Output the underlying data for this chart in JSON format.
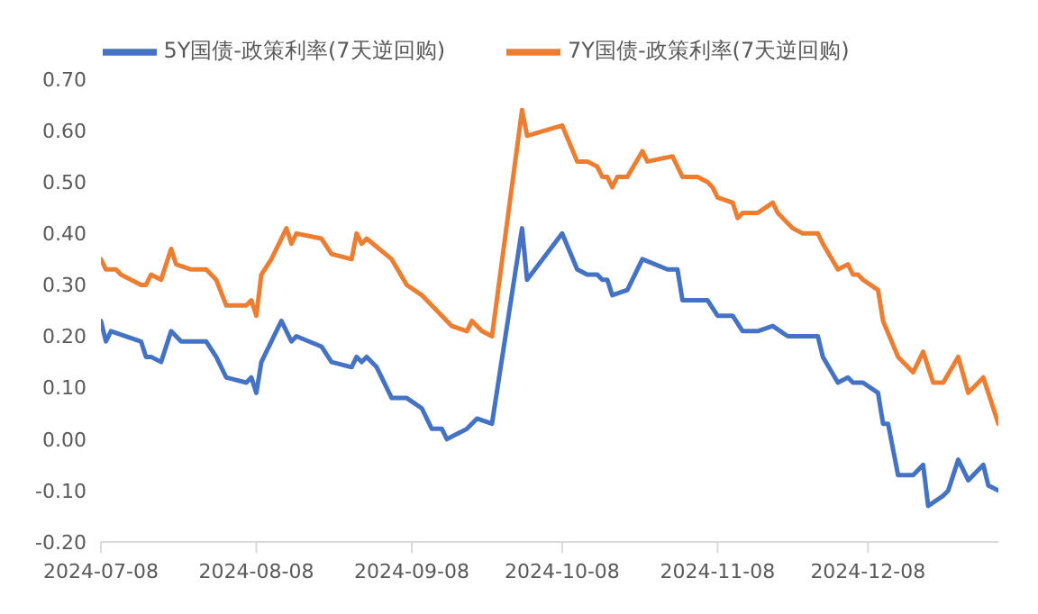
{
  "chart_data": {
    "type": "line",
    "legend": "top",
    "grid": false,
    "marker": "none",
    "line_style": "solid",
    "xlim": [
      "2024-07-08",
      "2025-01-03"
    ],
    "xticks": [
      "2024-07-08",
      "2024-08-08",
      "2024-09-08",
      "2024-10-08",
      "2024-11-08",
      "2024-12-08"
    ],
    "ylim": [
      -0.2,
      0.7
    ],
    "yticks": [
      {
        "value": -0.2,
        "label": "-0.20"
      },
      {
        "value": -0.1,
        "label": "-0.10"
      },
      {
        "value": 0,
        "label": "0.00"
      },
      {
        "value": 0.1,
        "label": "0.10"
      },
      {
        "value": 0.2,
        "label": "0.20"
      },
      {
        "value": 0.3,
        "label": "0.30"
      },
      {
        "value": 0.4,
        "label": "0.40"
      },
      {
        "value": 0.5,
        "label": "0.50"
      },
      {
        "value": 0.6,
        "label": "0.60"
      },
      {
        "value": 0.7,
        "label": "0.70"
      }
    ],
    "series": [
      {
        "name": "5Y国债-政策利率(7天逆回购)",
        "color": "#4472c4",
        "x": [
          "2024-07-08",
          "2024-07-09",
          "2024-07-10",
          "2024-07-13",
          "2024-07-16",
          "2024-07-17",
          "2024-07-18",
          "2024-07-20",
          "2024-07-22",
          "2024-07-24",
          "2024-07-27",
          "2024-07-29",
          "2024-07-31",
          "2024-08-02",
          "2024-08-06",
          "2024-08-07",
          "2024-08-08",
          "2024-08-09",
          "2024-08-13",
          "2024-08-15",
          "2024-08-16",
          "2024-08-21",
          "2024-08-23",
          "2024-08-27",
          "2024-08-28",
          "2024-08-29",
          "2024-08-30",
          "2024-09-01",
          "2024-09-04",
          "2024-09-07",
          "2024-09-10",
          "2024-09-12",
          "2024-09-14",
          "2024-09-15",
          "2024-09-19",
          "2024-09-21",
          "2024-09-24",
          "2024-09-30",
          "2024-10-01",
          "2024-10-08",
          "2024-10-11",
          "2024-10-13",
          "2024-10-15",
          "2024-10-16",
          "2024-10-17",
          "2024-10-18",
          "2024-10-21",
          "2024-10-24",
          "2024-10-29",
          "2024-10-31",
          "2024-11-01",
          "2024-11-04",
          "2024-11-06",
          "2024-11-08",
          "2024-11-11",
          "2024-11-13",
          "2024-11-16",
          "2024-11-19",
          "2024-11-22",
          "2024-11-26",
          "2024-11-28",
          "2024-11-29",
          "2024-12-02",
          "2024-12-04",
          "2024-12-05",
          "2024-12-07",
          "2024-12-10",
          "2024-12-11",
          "2024-12-12",
          "2024-12-14",
          "2024-12-17",
          "2024-12-19",
          "2024-12-20",
          "2024-12-23",
          "2024-12-24",
          "2024-12-26",
          "2024-12-28",
          "2024-12-31",
          "2025-01-01",
          "2025-01-03"
        ],
        "values": [
          0.23,
          0.19,
          0.21,
          0.2,
          0.19,
          0.16,
          0.16,
          0.15,
          0.21,
          0.19,
          0.19,
          0.19,
          0.16,
          0.12,
          0.11,
          0.12,
          0.09,
          0.15,
          0.23,
          0.19,
          0.2,
          0.18,
          0.15,
          0.14,
          0.16,
          0.15,
          0.16,
          0.14,
          0.08,
          0.08,
          0.06,
          0.02,
          0.02,
          0.0,
          0.02,
          0.04,
          0.03,
          0.41,
          0.31,
          0.4,
          0.33,
          0.32,
          0.32,
          0.31,
          0.31,
          0.28,
          0.29,
          0.35,
          0.33,
          0.33,
          0.27,
          0.27,
          0.27,
          0.24,
          0.24,
          0.21,
          0.21,
          0.22,
          0.2,
          0.2,
          0.2,
          0.16,
          0.11,
          0.12,
          0.11,
          0.11,
          0.09,
          0.03,
          0.03,
          -0.07,
          -0.07,
          -0.05,
          -0.13,
          -0.11,
          -0.1,
          -0.04,
          -0.08,
          -0.05,
          -0.09,
          -0.1
        ]
      },
      {
        "name": "7Y国债-政策利率(7天逆回购)",
        "color": "#ed7d31",
        "x": [
          "2024-07-08",
          "2024-07-09",
          "2024-07-11",
          "2024-07-12",
          "2024-07-16",
          "2024-07-17",
          "2024-07-18",
          "2024-07-20",
          "2024-07-22",
          "2024-07-23",
          "2024-07-26",
          "2024-07-29",
          "2024-07-31",
          "2024-08-02",
          "2024-08-06",
          "2024-08-07",
          "2024-08-08",
          "2024-08-09",
          "2024-08-11",
          "2024-08-14",
          "2024-08-15",
          "2024-08-16",
          "2024-08-21",
          "2024-08-23",
          "2024-08-27",
          "2024-08-28",
          "2024-08-29",
          "2024-08-30",
          "2024-09-04",
          "2024-09-07",
          "2024-09-10",
          "2024-09-12",
          "2024-09-14",
          "2024-09-16",
          "2024-09-19",
          "2024-09-20",
          "2024-09-22",
          "2024-09-24",
          "2024-09-30",
          "2024-10-01",
          "2024-10-08",
          "2024-10-11",
          "2024-10-13",
          "2024-10-15",
          "2024-10-16",
          "2024-10-17",
          "2024-10-18",
          "2024-10-19",
          "2024-10-21",
          "2024-10-24",
          "2024-10-25",
          "2024-10-30",
          "2024-11-01",
          "2024-11-04",
          "2024-11-06",
          "2024-11-07",
          "2024-11-08",
          "2024-11-11",
          "2024-11-12",
          "2024-11-13",
          "2024-11-16",
          "2024-11-19",
          "2024-11-20",
          "2024-11-22",
          "2024-11-23",
          "2024-11-25",
          "2024-11-28",
          "2024-11-29",
          "2024-12-02",
          "2024-12-04",
          "2024-12-05",
          "2024-12-06",
          "2024-12-07",
          "2024-12-10",
          "2024-12-11",
          "2024-12-14",
          "2024-12-17",
          "2024-12-19",
          "2024-12-21",
          "2024-12-23",
          "2024-12-26",
          "2024-12-28",
          "2024-12-31",
          "2025-01-03"
        ],
        "values": [
          0.35,
          0.33,
          0.33,
          0.32,
          0.3,
          0.3,
          0.32,
          0.31,
          0.37,
          0.34,
          0.33,
          0.33,
          0.31,
          0.26,
          0.26,
          0.27,
          0.24,
          0.32,
          0.35,
          0.41,
          0.38,
          0.4,
          0.39,
          0.36,
          0.35,
          0.4,
          0.38,
          0.39,
          0.35,
          0.3,
          0.28,
          0.26,
          0.24,
          0.22,
          0.21,
          0.23,
          0.21,
          0.2,
          0.64,
          0.59,
          0.61,
          0.54,
          0.54,
          0.53,
          0.51,
          0.51,
          0.49,
          0.51,
          0.51,
          0.56,
          0.54,
          0.55,
          0.51,
          0.51,
          0.5,
          0.49,
          0.47,
          0.46,
          0.43,
          0.44,
          0.44,
          0.46,
          0.44,
          0.42,
          0.41,
          0.4,
          0.4,
          0.38,
          0.33,
          0.34,
          0.32,
          0.32,
          0.31,
          0.29,
          0.23,
          0.16,
          0.13,
          0.17,
          0.11,
          0.11,
          0.16,
          0.09,
          0.12,
          0.03
        ]
      }
    ]
  }
}
